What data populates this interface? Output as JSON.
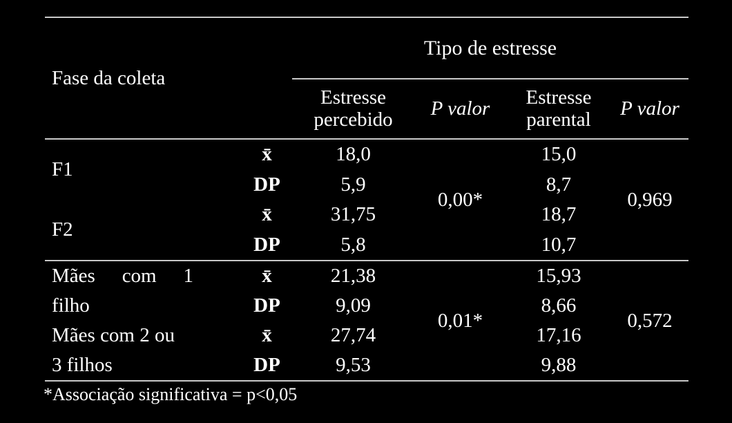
{
  "table": {
    "fase_header": "Fase da coleta",
    "group_header": "Tipo de estresse",
    "sub_headers": [
      "Estresse percebido",
      "P valor",
      "Estresse parental",
      "P valor"
    ],
    "sections": [
      {
        "groups": [
          {
            "label_lines": [
              "F1"
            ],
            "rows": [
              {
                "stat": "x̄",
                "percebido": "18,0",
                "parental": "15,0"
              },
              {
                "stat": "DP",
                "percebido": "5,9",
                "parental": "8,7"
              }
            ]
          },
          {
            "label_lines": [
              "F2"
            ],
            "rows": [
              {
                "stat": "x̄",
                "percebido": "31,75",
                "parental": "18,7"
              },
              {
                "stat": "DP",
                "percebido": "5,8",
                "parental": "10,7"
              }
            ]
          }
        ],
        "p_percebido": "0,00*",
        "p_parental": "0,969"
      },
      {
        "groups": [
          {
            "label_lines": [
              "Mães com 1",
              "filho"
            ],
            "rows": [
              {
                "stat": "x̄",
                "percebido": "21,38",
                "parental": "15,93"
              },
              {
                "stat": "DP",
                "percebido": "9,09",
                "parental": "8,66"
              }
            ]
          },
          {
            "label_lines": [
              "Mães com 2 ou",
              "3 filhos"
            ],
            "rows": [
              {
                "stat": "x̄",
                "percebido": "27,74",
                "parental": "17,16"
              },
              {
                "stat": "DP",
                "percebido": "9,53",
                "parental": "9,88"
              }
            ]
          }
        ],
        "p_percebido": "0,01*",
        "p_parental": "0,572"
      }
    ],
    "footnote": "*Associação significativa = p<0,05",
    "colors": {
      "background": "#000000",
      "text": "#ffffff",
      "rule": "#c9c9c9"
    }
  }
}
